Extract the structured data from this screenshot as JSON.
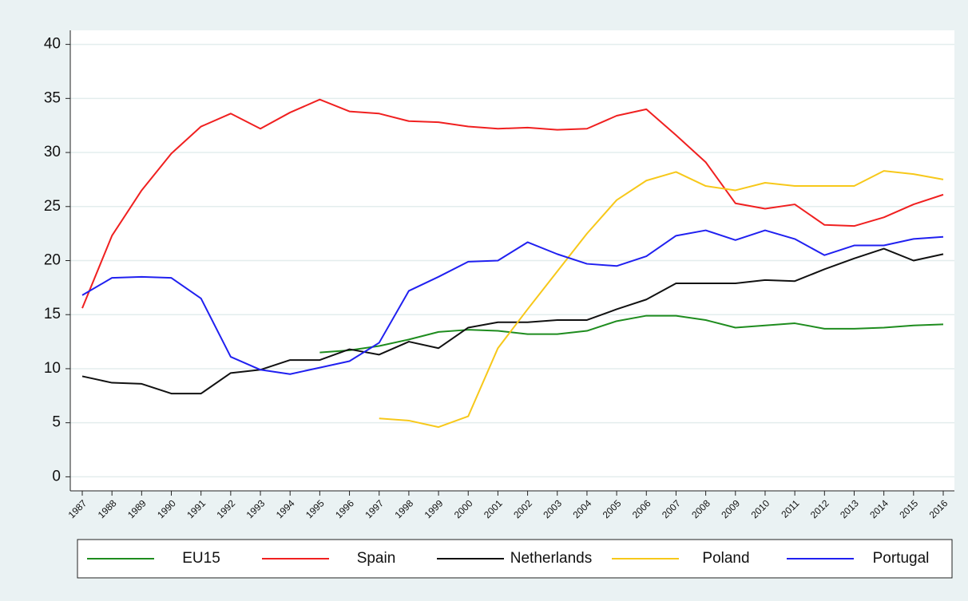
{
  "chart_data": {
    "type": "line",
    "categories": [
      "1987",
      "1988",
      "1989",
      "1990",
      "1991",
      "1992",
      "1993",
      "1994",
      "1995",
      "1996",
      "1997",
      "1998",
      "1999",
      "2000",
      "2001",
      "2002",
      "2003",
      "2004",
      "2005",
      "2006",
      "2007",
      "2008",
      "2009",
      "2010",
      "2011",
      "2012",
      "2013",
      "2014",
      "2015",
      "2016"
    ],
    "series": [
      {
        "name": "EU15",
        "color": "#1e8c1e",
        "values": [
          null,
          null,
          null,
          null,
          null,
          null,
          null,
          null,
          11.5,
          11.7,
          12.1,
          12.7,
          13.4,
          13.6,
          13.5,
          13.2,
          13.2,
          13.5,
          14.4,
          14.9,
          14.9,
          14.5,
          13.8,
          14.0,
          14.2,
          13.7,
          13.7,
          13.8,
          14.0,
          14.1
        ]
      },
      {
        "name": "Spain",
        "color": "#f02020",
        "values": [
          15.6,
          22.3,
          26.5,
          29.9,
          32.4,
          33.6,
          32.2,
          33.7,
          34.9,
          33.8,
          33.6,
          32.9,
          32.8,
          32.4,
          32.2,
          32.3,
          32.1,
          32.2,
          33.4,
          34.0,
          31.6,
          29.1,
          25.3,
          24.8,
          25.2,
          23.3,
          23.2,
          24.0,
          25.2,
          26.1
        ]
      },
      {
        "name": "Netherlands",
        "color": "#111111",
        "values": [
          9.3,
          8.7,
          8.6,
          7.7,
          7.7,
          9.6,
          9.9,
          10.8,
          10.8,
          11.8,
          11.3,
          12.5,
          11.9,
          13.8,
          14.3,
          14.3,
          14.5,
          14.5,
          15.5,
          16.4,
          17.9,
          17.9,
          17.9,
          18.2,
          18.1,
          19.2,
          20.2,
          21.1,
          20.0,
          20.6
        ]
      },
      {
        "name": "Poland",
        "color": "#f7c81a",
        "values": [
          null,
          null,
          null,
          null,
          null,
          null,
          null,
          null,
          null,
          null,
          5.4,
          5.2,
          4.6,
          5.6,
          11.9,
          15.5,
          19.0,
          22.5,
          25.6,
          27.4,
          28.2,
          26.9,
          26.5,
          27.2,
          26.9,
          26.9,
          26.9,
          28.3,
          28.0,
          27.5
        ]
      },
      {
        "name": "Portugal",
        "color": "#2020f0",
        "values": [
          16.8,
          18.4,
          18.5,
          18.4,
          16.5,
          11.1,
          9.9,
          9.5,
          10.1,
          10.7,
          12.4,
          17.2,
          18.5,
          19.9,
          20.0,
          21.7,
          20.6,
          19.7,
          19.5,
          20.4,
          22.3,
          22.8,
          21.9,
          22.8,
          22.0,
          20.5,
          21.4,
          21.4,
          22.0,
          22.2
        ]
      }
    ],
    "ylim": [
      -1.3,
      41.3
    ],
    "yticks": [
      0,
      5,
      10,
      15,
      20,
      25,
      30,
      35,
      40
    ],
    "grid": true,
    "legend": "bottom"
  }
}
